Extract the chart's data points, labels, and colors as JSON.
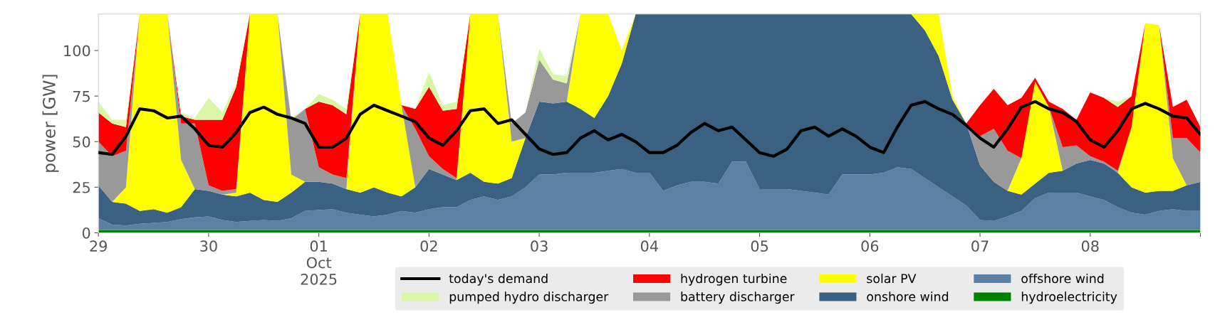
{
  "chart_data": {
    "type": "area",
    "stacked": true,
    "ylabel": "power [GW]",
    "x": [
      "2025-09-29T00:00",
      "2025-09-29T03:00",
      "2025-09-29T06:00",
      "2025-09-29T09:00",
      "2025-09-29T12:00",
      "2025-09-29T15:00",
      "2025-09-29T18:00",
      "2025-09-29T21:00",
      "2025-09-30T00:00",
      "2025-09-30T03:00",
      "2025-09-30T06:00",
      "2025-09-30T09:00",
      "2025-09-30T12:00",
      "2025-09-30T15:00",
      "2025-09-30T18:00",
      "2025-09-30T21:00",
      "2025-10-01T00:00",
      "2025-10-01T03:00",
      "2025-10-01T06:00",
      "2025-10-01T09:00",
      "2025-10-01T12:00",
      "2025-10-01T15:00",
      "2025-10-01T18:00",
      "2025-10-01T21:00",
      "2025-10-02T00:00",
      "2025-10-02T03:00",
      "2025-10-02T06:00",
      "2025-10-02T09:00",
      "2025-10-02T12:00",
      "2025-10-02T15:00",
      "2025-10-02T18:00",
      "2025-10-02T21:00",
      "2025-10-03T00:00",
      "2025-10-03T03:00",
      "2025-10-03T06:00",
      "2025-10-03T09:00",
      "2025-10-03T12:00",
      "2025-10-03T15:00",
      "2025-10-03T18:00",
      "2025-10-03T21:00",
      "2025-10-04T00:00",
      "2025-10-04T03:00",
      "2025-10-04T06:00",
      "2025-10-04T09:00",
      "2025-10-04T12:00",
      "2025-10-04T15:00",
      "2025-10-04T18:00",
      "2025-10-04T21:00",
      "2025-10-05T00:00",
      "2025-10-05T03:00",
      "2025-10-05T06:00",
      "2025-10-05T09:00",
      "2025-10-05T12:00",
      "2025-10-05T15:00",
      "2025-10-05T18:00",
      "2025-10-05T21:00",
      "2025-10-06T00:00",
      "2025-10-06T03:00",
      "2025-10-06T06:00",
      "2025-10-06T09:00",
      "2025-10-06T12:00",
      "2025-10-06T15:00",
      "2025-10-06T18:00",
      "2025-10-06T21:00",
      "2025-10-07T00:00",
      "2025-10-07T03:00",
      "2025-10-07T06:00",
      "2025-10-07T09:00",
      "2025-10-07T12:00",
      "2025-10-07T15:00",
      "2025-10-07T18:00",
      "2025-10-07T21:00",
      "2025-10-08T00:00",
      "2025-10-08T03:00",
      "2025-10-08T06:00",
      "2025-10-08T09:00",
      "2025-10-08T12:00",
      "2025-10-08T15:00",
      "2025-10-08T18:00",
      "2025-10-08T21:00",
      "2025-10-09T00:00"
    ],
    "series": [
      {
        "name": "hydroelectricity",
        "color": "#008000",
        "values": [
          1.5,
          1.5,
          1.5,
          1.5,
          1.5,
          1.5,
          1.5,
          1.5,
          1.5,
          1.5,
          1.5,
          1.5,
          1.5,
          1.5,
          1.5,
          1.5,
          1.5,
          1.5,
          1.5,
          1.5,
          1.5,
          1.5,
          1.5,
          1.5,
          1.5,
          1.5,
          1.5,
          1.5,
          1.5,
          1.5,
          1.5,
          1.5,
          1.5,
          1.5,
          1.5,
          1.5,
          1.5,
          1.5,
          1.5,
          1.5,
          1.5,
          1.5,
          1.5,
          1.5,
          1.5,
          1.5,
          1.5,
          1.5,
          1.5,
          1.5,
          1.5,
          1.5,
          1.5,
          1.5,
          1.5,
          1.5,
          1.5,
          1.5,
          1.5,
          1.5,
          1.5,
          1.5,
          1.5,
          1.5,
          1.5,
          1.5,
          1.5,
          1.5,
          1.5,
          1.5,
          1.5,
          1.5,
          1.5,
          1.5,
          1.5,
          1.5,
          1.5,
          1.5,
          1.5,
          1.5,
          1.5
        ]
      },
      {
        "name": "offshore wind",
        "color": "#5b80a3",
        "values": [
          6.5,
          3,
          2.5,
          3.5,
          4,
          4.5,
          6,
          7,
          7.5,
          5.5,
          4.5,
          5,
          5.5,
          5,
          6.5,
          10.5,
          11,
          11.5,
          9.5,
          8.5,
          7.5,
          8.5,
          10.5,
          9.5,
          11.5,
          12.5,
          12.5,
          16.5,
          18.5,
          16.5,
          18.5,
          23.5,
          30.5,
          30.5,
          31.5,
          31.5,
          31.5,
          32.5,
          33.5,
          31.5,
          31.5,
          21.5,
          24.5,
          26.5,
          26.5,
          25.5,
          37.5,
          37.5,
          22.5,
          22.5,
          22.5,
          21.5,
          20.5,
          19.5,
          30.5,
          30.5,
          30.5,
          31.5,
          34.5,
          33.5,
          28.5,
          23.5,
          18.5,
          13.5,
          5.5,
          5,
          7.5,
          10.5,
          17.5,
          20.5,
          20.5,
          20.5,
          18.5,
          16.5,
          12.5,
          9.5,
          8.5,
          10.5,
          11.5,
          10.5,
          10.5
        ]
      },
      {
        "name": "onshore wind",
        "color": "#3b6182",
        "values": [
          18,
          12.5,
          12,
          7,
          7.5,
          5,
          6.5,
          15.5,
          14,
          14,
          14,
          15.5,
          11,
          10.5,
          14,
          16,
          15.5,
          14,
          13,
          12,
          16,
          12,
          8,
          14,
          22,
          18,
          15,
          15,
          8,
          9,
          10,
          27,
          40,
          39,
          39,
          35,
          30,
          41,
          58,
          87,
          87,
          97,
          94,
          92,
          92,
          93,
          81,
          81,
          96,
          96,
          96,
          97,
          98,
          99,
          88,
          88,
          88,
          87,
          84,
          85,
          81,
          72,
          53,
          45,
          30,
          21.5,
          14,
          9,
          8,
          11,
          12,
          16,
          20,
          20,
          19,
          14,
          12,
          11,
          10,
          14,
          16
        ]
      },
      {
        "name": "solar PV",
        "color": "#ffff00",
        "values": [
          0,
          0,
          9,
          108,
          107,
          109,
          26,
          0,
          0,
          0,
          2,
          98,
          102,
          103,
          10,
          0,
          0,
          0,
          0,
          98,
          95,
          98,
          50,
          0,
          0,
          0,
          0,
          87,
          92,
          93,
          20,
          0,
          0,
          0,
          0,
          52,
          57,
          45,
          7,
          0,
          0,
          0,
          0,
          0,
          0,
          0,
          0,
          0,
          0,
          0,
          0,
          0,
          0,
          0,
          0,
          0,
          0,
          0,
          0,
          0,
          9,
          23,
          2,
          0,
          0,
          0,
          0,
          20,
          56,
          36,
          0,
          0,
          0,
          0,
          0,
          33,
          93,
          91,
          18,
          0,
          0
        ]
      },
      {
        "name": "battery discharger",
        "color": "#999999",
        "values": [
          24,
          25,
          20,
          0,
          0,
          0,
          20,
          36,
          3,
          2,
          2,
          0,
          0,
          0,
          30,
          40,
          8,
          5,
          6,
          0,
          0,
          0,
          0,
          32,
          7,
          3,
          1,
          0,
          0,
          0,
          10,
          14,
          23,
          13,
          10,
          0,
          0,
          0,
          0,
          0,
          0,
          0,
          0,
          0,
          0,
          0,
          0,
          0,
          0,
          0,
          0,
          0,
          0,
          0,
          0,
          0,
          0,
          0,
          0,
          0,
          0,
          0,
          0,
          0,
          16,
          29,
          22,
          0,
          0,
          0,
          13,
          10,
          2,
          1,
          1,
          0,
          0,
          0,
          11,
          26,
          16
        ]
      },
      {
        "name": "hydrogen turbine",
        "color": "#ff0000",
        "values": [
          16,
          18,
          13,
          0,
          0,
          0,
          4,
          2,
          36,
          39,
          56,
          0,
          0,
          0,
          0,
          0,
          36,
          38,
          35,
          0,
          0,
          0,
          0,
          11,
          38,
          32,
          38,
          0,
          0,
          0,
          0,
          0,
          0,
          0,
          0,
          0,
          0,
          0,
          0,
          0,
          0,
          0,
          0,
          0,
          0,
          0,
          0,
          0,
          0,
          0,
          0,
          0,
          0,
          0,
          0,
          0,
          0,
          0,
          0,
          0,
          0,
          0,
          0,
          0,
          17,
          22,
          25,
          33,
          2,
          3,
          21,
          14,
          35,
          35,
          35,
          17,
          0,
          0,
          17,
          21,
          14
        ]
      },
      {
        "name": "pumped hydro discharger",
        "color": "#d9f5a6",
        "values": [
          6,
          2,
          4,
          0,
          0,
          0,
          2,
          1,
          12,
          4,
          2,
          0,
          0,
          0,
          1,
          0,
          4,
          3,
          3,
          0,
          0,
          0,
          0,
          0,
          8,
          3,
          4,
          0,
          0,
          0,
          0,
          0,
          6,
          3,
          4,
          0,
          0,
          0,
          0,
          0,
          0,
          0,
          0,
          0,
          0,
          0,
          0,
          0,
          0,
          0,
          0,
          0,
          0,
          0,
          0,
          0,
          0,
          0,
          0,
          0,
          0,
          0,
          0,
          0,
          0,
          0,
          0,
          0,
          0,
          0,
          0,
          0,
          0,
          0,
          3,
          0,
          0,
          0,
          0,
          0,
          0
        ]
      },
      {
        "name": "today's demand",
        "type": "line",
        "color": "#000000",
        "values": [
          44,
          43,
          53,
          68,
          67,
          63,
          64,
          57,
          48,
          47,
          55,
          66,
          69,
          65,
          63,
          60,
          47,
          47,
          52,
          65,
          70,
          67,
          64,
          61,
          52,
          48,
          56,
          67,
          68,
          60,
          62,
          54,
          46,
          43,
          44,
          52,
          56,
          51,
          54,
          50,
          44,
          44,
          48,
          55,
          60,
          56,
          58,
          51,
          44,
          42,
          46,
          56,
          58,
          53,
          57,
          53,
          47,
          44,
          58,
          70,
          72,
          68,
          65,
          59,
          52,
          47,
          57,
          69,
          72,
          68,
          66,
          61,
          51,
          47,
          56,
          68,
          71,
          68,
          64,
          63,
          54
        ]
      }
    ],
    "xlim": [
      "2025-09-29",
      "2025-10-09"
    ],
    "xticks": [
      {
        "value": "2025-09-29",
        "label": "29"
      },
      {
        "value": "2025-09-30",
        "label": "30"
      },
      {
        "value": "2025-10-01",
        "label": "01\nOct\n2025"
      },
      {
        "value": "2025-10-02",
        "label": "02"
      },
      {
        "value": "2025-10-03",
        "label": "03"
      },
      {
        "value": "2025-10-04",
        "label": "04"
      },
      {
        "value": "2025-10-05",
        "label": "05"
      },
      {
        "value": "2025-10-06",
        "label": "06"
      },
      {
        "value": "2025-10-07",
        "label": "07"
      },
      {
        "value": "2025-10-08",
        "label": "08"
      },
      {
        "value": "2025-10-09",
        "label": null
      }
    ],
    "ylim": [
      0,
      120
    ],
    "yticks": [
      0,
      25,
      50,
      75,
      100
    ],
    "grid": false,
    "legend": "bottom"
  }
}
